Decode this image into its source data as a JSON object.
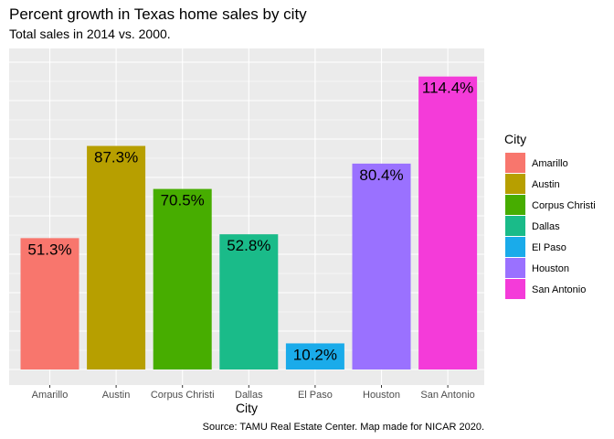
{
  "chart_data": {
    "type": "bar",
    "title": "Percent growth in Texas home sales by city",
    "subtitle": "Total sales in 2014 vs. 2000.",
    "xlabel": "City",
    "ylabel": "",
    "caption": "Source: TAMU Real Estate Center. Map made for NICAR 2020.",
    "categories": [
      "Amarillo",
      "Austin",
      "Corpus Christi",
      "Dallas",
      "El Paso",
      "Houston",
      "San Antonio"
    ],
    "values": [
      51.3,
      87.3,
      70.5,
      52.8,
      10.2,
      80.4,
      114.4
    ],
    "data_labels": [
      "51.3%",
      "87.3%",
      "70.5%",
      "52.8%",
      "10.2%",
      "80.4%",
      "114.4%"
    ],
    "colors": [
      "#F8766D",
      "#B79F00",
      "#47AD00",
      "#1ABB89",
      "#1AABEA",
      "#9A71FF",
      "#F43BD9"
    ],
    "ylim": [
      0,
      120
    ],
    "y_ticks_shown": false,
    "grid": true,
    "panel_background": "#EBEBEB",
    "legend": {
      "title": "City",
      "position": "right",
      "entries": [
        "Amarillo",
        "Austin",
        "Corpus Christi",
        "Dallas",
        "El Paso",
        "Houston",
        "San Antonio"
      ]
    }
  }
}
